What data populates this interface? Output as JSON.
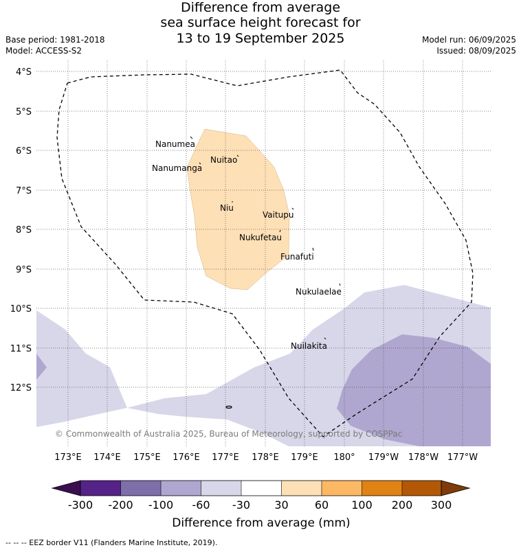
{
  "title": {
    "line1": "Difference from average",
    "line2": "sea surface height forecast for",
    "line3": "13 to 19 September 2025"
  },
  "meta": {
    "base_period": "Base period: 1981-2018",
    "model": "Model: ACCESS-S2",
    "model_run": "Model run: 06/09/2025",
    "issued": "Issued: 08/09/2025"
  },
  "map": {
    "lat_labels": [
      "4°S",
      "5°S",
      "6°S",
      "7°S",
      "8°S",
      "9°S",
      "10°S",
      "11°S",
      "12°S"
    ],
    "lon_labels": [
      "173°E",
      "174°E",
      "175°E",
      "176°E",
      "177°E",
      "178°E",
      "179°E",
      "180°",
      "179°W",
      "178°W",
      "177°W"
    ],
    "places": [
      {
        "name": "Nanumea"
      },
      {
        "name": "Nuitao"
      },
      {
        "name": "Nanumanga"
      },
      {
        "name": "Niu"
      },
      {
        "name": "Vaitupu"
      },
      {
        "name": "Nukufetau"
      },
      {
        "name": "Funafuti"
      },
      {
        "name": "Nukulaelae"
      },
      {
        "name": "Nuilakita"
      }
    ],
    "copyright": "© Commonwealth of Australia 2025, Bureau of Meteorology, supported by COSPPac",
    "colors": {
      "neg_300": "#3a0f50",
      "neg_200": "#552288",
      "neg_100": "#7e6fab",
      "neg_60": "#afa7cf",
      "neg_30": "#d7d7e9",
      "neutral": "#ffffff",
      "pos_30": "#fee0b6",
      "pos_60": "#fdb863",
      "pos_100": "#e08214",
      "pos_200": "#b35806",
      "pos_300": "#7f3b08"
    }
  },
  "colorbar": {
    "ticks": [
      "-300",
      "-200",
      "-100",
      "-60",
      "-30",
      "30",
      "60",
      "100",
      "200",
      "300"
    ],
    "title": "Difference from average (mm)"
  },
  "legend": "--  --  -- EEZ border V11 (Flanders Marine Institute, 2019)."
}
